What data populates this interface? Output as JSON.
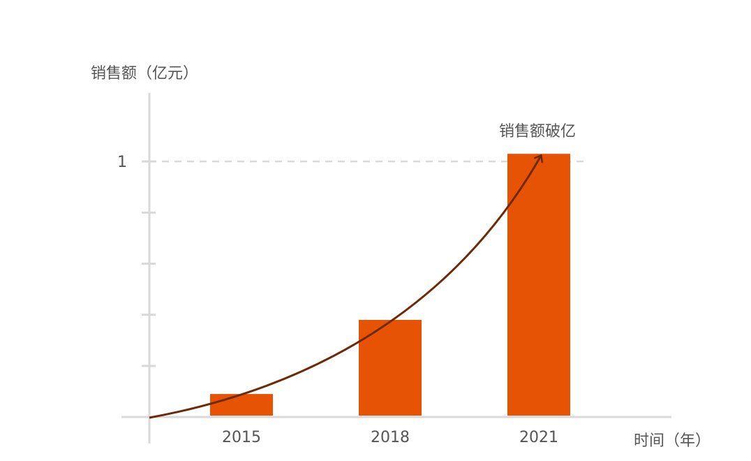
{
  "chart_data": {
    "type": "bar",
    "categories": [
      "2015",
      "2018",
      "2021"
    ],
    "values": [
      0.09,
      0.38,
      1.03
    ],
    "ylabel": "销售额（亿元）",
    "xlabel": "时间（年）",
    "y_tick_labels": [
      "1"
    ],
    "ylim": [
      0,
      1.2
    ],
    "reference_line": {
      "value": 1,
      "style": "dashed"
    },
    "trend_arrow": {
      "from": "origin",
      "to": "2021",
      "label": "销售额破亿"
    },
    "grid": false,
    "colors": {
      "bar": "#E65305",
      "arrow": "#6E2A06",
      "axis": "#D9D9D9",
      "reference": "#D9D9D9",
      "text": "#555555"
    }
  }
}
